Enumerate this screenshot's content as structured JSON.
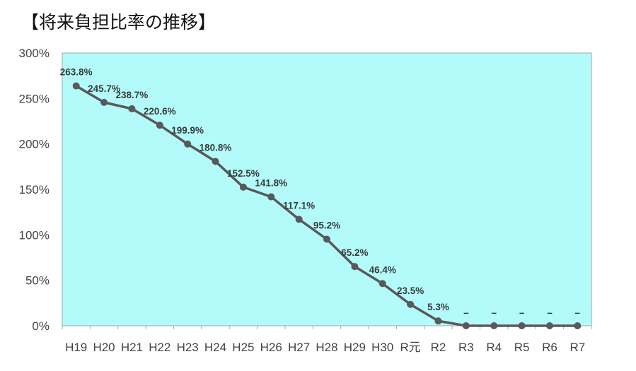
{
  "chart_data": {
    "type": "line",
    "title": "【将来負担比率の推移】",
    "xlabel": "",
    "ylabel": "",
    "categories": [
      "H19",
      "H20",
      "H21",
      "H22",
      "H23",
      "H24",
      "H25",
      "H26",
      "H27",
      "H28",
      "H29",
      "H30",
      "R元",
      "R2",
      "R3",
      "R4",
      "R5",
      "R6",
      "R7"
    ],
    "series": [
      {
        "values": [
          263.8,
          245.7,
          238.7,
          220.6,
          199.9,
          180.8,
          152.5,
          141.8,
          117.1,
          95.2,
          65.2,
          46.4,
          23.5,
          5.3,
          0,
          0,
          0,
          0,
          0
        ],
        "data_labels": [
          "263.8%",
          "245.7%",
          "238.7%",
          "220.6%",
          "199.9%",
          "180.8%",
          "152.5%",
          "141.8%",
          "117.1%",
          "95.2%",
          "65.2%",
          "46.4%",
          "23.5%",
          "5.3%",
          "–",
          "–",
          "–",
          "–",
          "–"
        ]
      }
    ],
    "ylim": [
      0,
      300
    ],
    "yticks": [
      "0%",
      "50%",
      "100%",
      "150%",
      "200%",
      "250%",
      "300%"
    ],
    "grid": false,
    "legend": "none",
    "colors": {
      "plot_background": "#B3FBFB",
      "line": "#595959",
      "marker": "#595959"
    }
  }
}
